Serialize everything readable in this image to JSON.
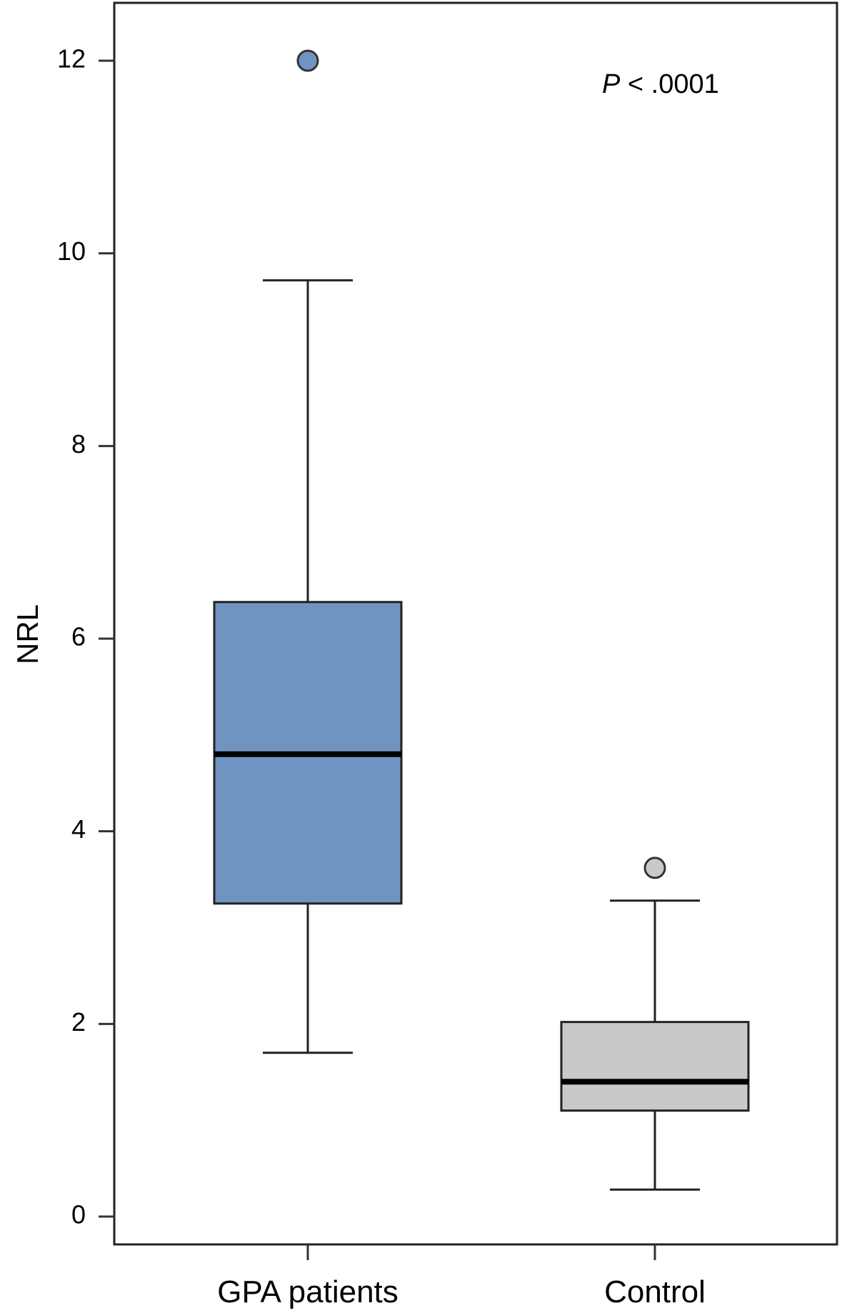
{
  "chart_data": {
    "type": "box",
    "ylabel": "NRL",
    "ylim": [
      0,
      12.8
    ],
    "yticks": [
      0,
      2,
      4,
      6,
      8,
      10,
      12
    ],
    "categories": [
      "GPA patients",
      "Control"
    ],
    "series": [
      {
        "category": "GPA patients",
        "whisker_low": 1.7,
        "q1": 3.25,
        "median": 4.8,
        "q3": 6.38,
        "whisker_high": 9.72,
        "outliers": [
          12.0
        ],
        "color": "#7094c2"
      },
      {
        "category": "Control",
        "whisker_low": 0.28,
        "q1": 1.1,
        "median": 1.4,
        "q3": 2.02,
        "whisker_high": 3.28,
        "outliers": [
          3.62
        ],
        "color": "#c9c9c9"
      }
    ],
    "annotation": {
      "p_symbol": "P",
      "p_rest": " < .0001"
    },
    "grid": false,
    "legend": "none"
  }
}
